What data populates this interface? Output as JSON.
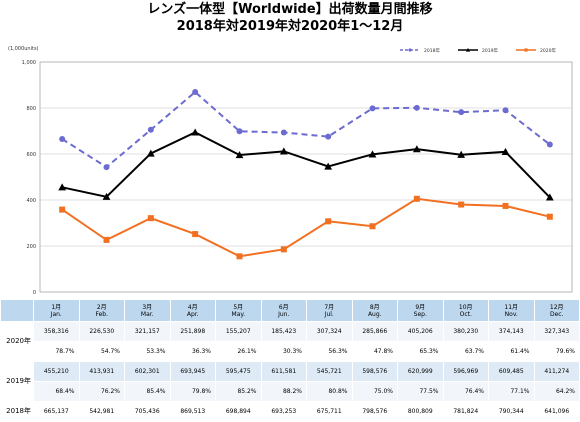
{
  "title_line1": "レンズ一体型【Worldwide】出荷数量月間推移",
  "title_line2": "2018年対2019年対2020年1～12月",
  "chart_data": {
    "type": "line",
    "unit_label": "(1,000units)",
    "categories": [
      "1月 Jan.",
      "2月 Feb.",
      "3月 Mar.",
      "4月 Apr.",
      "5月 May.",
      "6月 Jun.",
      "7月 Jul.",
      "8月 Aug.",
      "9月 Sep.",
      "10月 Oct.",
      "11月 Nov.",
      "12月 Dec."
    ],
    "ylim": [
      0,
      1000
    ],
    "yticks": [
      "0",
      "200",
      "400",
      "600",
      "800",
      "1,000"
    ],
    "grid": true,
    "legend_position": "top-right",
    "series": [
      {
        "name": "2018年",
        "color": "#6b6bd1",
        "style": "dashed",
        "marker": "circle",
        "values": [
          665.137,
          542.981,
          705.436,
          869.513,
          698.894,
          693.253,
          675.711,
          798.576,
          800.809,
          781.824,
          790.344,
          641.096
        ]
      },
      {
        "name": "2019年",
        "color": "#000000",
        "style": "solid",
        "marker": "triangle",
        "values": [
          455.21,
          413.931,
          602.301,
          693.945,
          595.475,
          611.581,
          545.721,
          598.576,
          620.999,
          596.969,
          609.485,
          411.274
        ]
      },
      {
        "name": "2020年",
        "color": "#f27021",
        "style": "solid",
        "marker": "square",
        "values": [
          358.316,
          226.53,
          321.157,
          251.898,
          155.207,
          185.423,
          307.324,
          285.866,
          405.206,
          380.23,
          374.143,
          327.343
        ]
      }
    ]
  },
  "table": {
    "months": [
      [
        "1月",
        "Jan."
      ],
      [
        "2月",
        "Feb."
      ],
      [
        "3月",
        "Mar."
      ],
      [
        "4月",
        "Apr."
      ],
      [
        "5月",
        "May."
      ],
      [
        "6月",
        "Jun."
      ],
      [
        "7月",
        "Jul."
      ],
      [
        "8月",
        "Aug."
      ],
      [
        "9月",
        "Sep."
      ],
      [
        "10月",
        "Oct."
      ],
      [
        "11月",
        "Nov."
      ],
      [
        "12月",
        "Dec."
      ]
    ],
    "rows": [
      {
        "label": "2020年",
        "values": [
          "358,316",
          "226,530",
          "321,157",
          "251,898",
          "155,207",
          "185,423",
          "307,324",
          "285,866",
          "405,206",
          "380,230",
          "374,143",
          "327,343"
        ],
        "ratios": [
          "78.7%",
          "54.7%",
          "53.3%",
          "36.3%",
          "26.1%",
          "30.3%",
          "56.3%",
          "47.8%",
          "65.3%",
          "63.7%",
          "61.4%",
          "79.6%"
        ]
      },
      {
        "label": "2019年",
        "values": [
          "455,210",
          "413,931",
          "602,301",
          "693,945",
          "595,475",
          "611,581",
          "545,721",
          "598,576",
          "620,999",
          "596,969",
          "609,485",
          "411,274"
        ],
        "ratios": [
          "68.4%",
          "76.2%",
          "85.4%",
          "79.8%",
          "85.2%",
          "88.2%",
          "80.8%",
          "75.0%",
          "77.5%",
          "76.4%",
          "77.1%",
          "64.2%"
        ]
      },
      {
        "label": "2018年",
        "values": [
          "665,137",
          "542,981",
          "705,436",
          "869,513",
          "698,894",
          "693,253",
          "675,711",
          "798,576",
          "800,809",
          "781,824",
          "790,344",
          "641,096"
        ]
      }
    ]
  }
}
